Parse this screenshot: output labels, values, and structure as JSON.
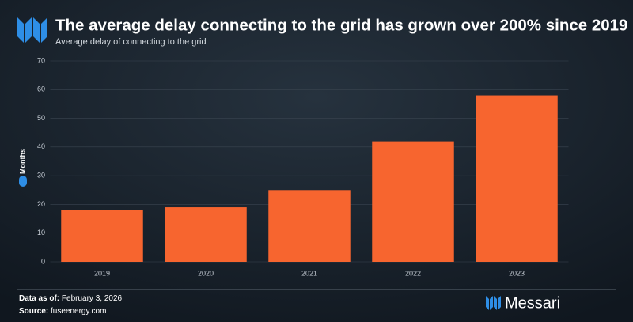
{
  "chart_data": {
    "type": "bar",
    "title": "The average delay connecting to the grid has grown over 200% since 2019",
    "subtitle": "Average delay of connecting to the grid",
    "categories": [
      "2019",
      "2020",
      "2021",
      "2022",
      "2023"
    ],
    "series": [
      {
        "name": "Months",
        "color": "#f7652f",
        "values": [
          18,
          19,
          25,
          42,
          58
        ]
      }
    ],
    "ylim": [
      0,
      70
    ],
    "yticks": [
      0,
      10,
      20,
      30,
      40,
      50,
      60,
      70
    ],
    "grid": true
  },
  "footer": {
    "data_as_of_label": "Data as of:",
    "data_as_of": "February 3, 2026",
    "source_label": "Source:",
    "source": "fuseenergy.com",
    "brand": "Messari"
  }
}
